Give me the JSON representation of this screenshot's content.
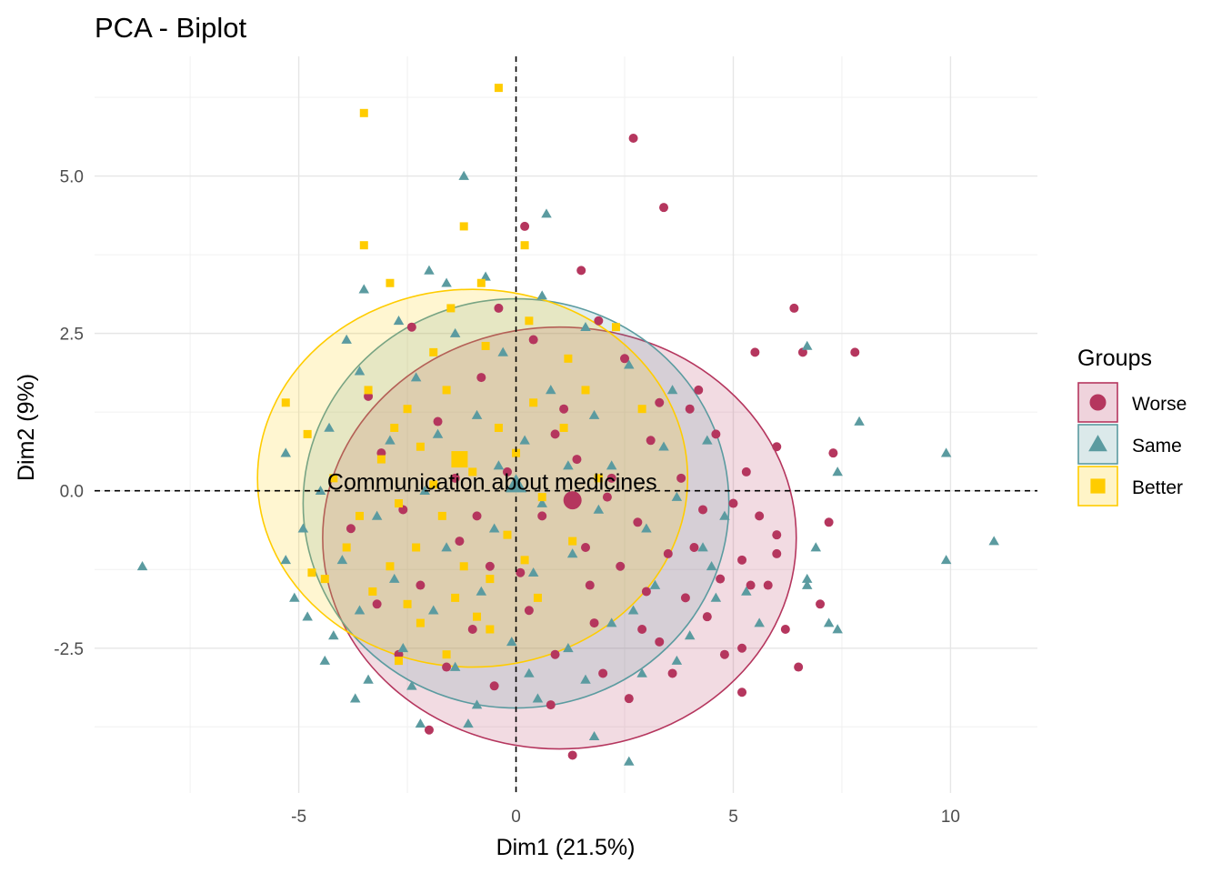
{
  "chart_data": {
    "type": "scatter",
    "title": "PCA - Biplot",
    "xlabel": "Dim1 (21.5%)",
    "ylabel": "Dim2 (9%)",
    "xlim": [
      -9.7,
      12
    ],
    "ylim": [
      -4.8,
      6.9
    ],
    "x_ticks": [
      -5,
      0,
      5,
      10
    ],
    "x_tick_labels": [
      "-5",
      "0",
      "5",
      "10"
    ],
    "y_ticks": [
      -2.5,
      0,
      2.5,
      5
    ],
    "y_tick_labels": [
      "-2.5",
      "0.0",
      "2.5",
      "5.0"
    ],
    "grid": true,
    "reference_lines": {
      "x": 0,
      "y": 0,
      "style": "dashed"
    },
    "legend": {
      "title": "Groups",
      "position": "right"
    },
    "variable_label": "Communication about medicines",
    "series": [
      {
        "name": "Worse",
        "color": "#B5365E",
        "marker": "circle",
        "centroid": [
          1.3,
          -0.15
        ],
        "ellipse": {
          "cx": 1.0,
          "cy": -0.75,
          "rx": 5.45,
          "ry": 3.35
        },
        "points": [
          [
            2.7,
            5.6
          ],
          [
            3.4,
            4.5
          ],
          [
            6.4,
            2.9
          ],
          [
            7.8,
            2.2
          ],
          [
            6.6,
            2.2
          ],
          [
            5.5,
            2.2
          ],
          [
            4.2,
            1.6
          ],
          [
            7.3,
            0.6
          ],
          [
            6.0,
            0.7
          ],
          [
            5.3,
            0.3
          ],
          [
            5.6,
            -0.4
          ],
          [
            6.0,
            -0.7
          ],
          [
            7.2,
            -0.5
          ],
          [
            6.0,
            -1.0
          ],
          [
            5.2,
            -1.1
          ],
          [
            4.7,
            -1.4
          ],
          [
            5.4,
            -1.5
          ],
          [
            5.8,
            -1.5
          ],
          [
            7.0,
            -1.8
          ],
          [
            6.2,
            -2.2
          ],
          [
            5.2,
            -2.5
          ],
          [
            6.5,
            -2.8
          ],
          [
            5.2,
            -3.2
          ],
          [
            4.8,
            -2.6
          ],
          [
            3.6,
            -2.9
          ],
          [
            3.3,
            -2.4
          ],
          [
            2.6,
            -3.3
          ],
          [
            1.3,
            -4.2
          ],
          [
            -2.0,
            -3.8
          ],
          [
            0.2,
            4.2
          ],
          [
            1.5,
            3.5
          ],
          [
            4.3,
            -0.3
          ],
          [
            3.5,
            -1.0
          ],
          [
            2.8,
            -0.5
          ],
          [
            2.2,
            0.2
          ],
          [
            3.1,
            0.8
          ],
          [
            4.6,
            0.9
          ],
          [
            3.9,
            -1.7
          ],
          [
            3.0,
            -1.6
          ],
          [
            2.4,
            -1.2
          ],
          [
            1.8,
            -2.1
          ],
          [
            0.9,
            -2.6
          ],
          [
            0.3,
            -1.9
          ],
          [
            -0.6,
            -1.2
          ],
          [
            -1.3,
            -0.8
          ],
          [
            -2.2,
            -1.5
          ],
          [
            -2.6,
            -0.3
          ],
          [
            -3.1,
            0.6
          ],
          [
            -1.8,
            1.1
          ],
          [
            -0.8,
            1.8
          ],
          [
            0.4,
            2.4
          ],
          [
            1.1,
            1.3
          ],
          [
            1.6,
            -0.9
          ],
          [
            0.6,
            -0.4
          ],
          [
            -0.2,
            0.3
          ],
          [
            -1.0,
            -2.2
          ],
          [
            -1.6,
            -2.8
          ],
          [
            -0.5,
            -3.1
          ],
          [
            0.8,
            -3.4
          ],
          [
            2.0,
            -2.9
          ],
          [
            3.8,
            0.2
          ],
          [
            4.0,
            1.3
          ],
          [
            2.5,
            2.1
          ],
          [
            1.9,
            2.7
          ],
          [
            -0.4,
            2.9
          ],
          [
            -2.4,
            2.6
          ],
          [
            -3.4,
            1.5
          ],
          [
            -3.8,
            -0.6
          ],
          [
            -3.2,
            -1.8
          ],
          [
            -2.7,
            -2.6
          ],
          [
            1.4,
            0.5
          ],
          [
            0.9,
            0.9
          ],
          [
            2.9,
            -2.2
          ],
          [
            4.4,
            -2.0
          ],
          [
            5.0,
            -0.2
          ],
          [
            3.3,
            1.4
          ],
          [
            2.1,
            -0.1
          ],
          [
            0.1,
            -1.3
          ],
          [
            -1.4,
            0.2
          ],
          [
            -0.9,
            -0.4
          ],
          [
            1.7,
            -1.5
          ],
          [
            4.1,
            -0.9
          ]
        ]
      },
      {
        "name": "Same",
        "color": "#5B9BA0",
        "marker": "triangle",
        "centroid": [
          0.0,
          0.1
        ],
        "ellipse": {
          "cx": 0.0,
          "cy": -0.2,
          "rx": 4.9,
          "ry": 3.25
        },
        "points": [
          [
            -1.2,
            5.0
          ],
          [
            0.7,
            4.4
          ],
          [
            -3.5,
            3.2
          ],
          [
            6.7,
            2.3
          ],
          [
            7.9,
            1.1
          ],
          [
            9.9,
            0.6
          ],
          [
            11.0,
            -0.8
          ],
          [
            9.9,
            -1.1
          ],
          [
            7.4,
            0.3
          ],
          [
            7.2,
            -2.1
          ],
          [
            7.4,
            -2.2
          ],
          [
            6.9,
            -0.9
          ],
          [
            6.7,
            -1.4
          ],
          [
            6.7,
            -1.5
          ],
          [
            5.6,
            -2.1
          ],
          [
            5.3,
            -1.6
          ],
          [
            4.5,
            -1.2
          ],
          [
            4.8,
            -0.4
          ],
          [
            4.3,
            -0.9
          ],
          [
            3.7,
            -2.7
          ],
          [
            2.6,
            -4.3
          ],
          [
            1.8,
            -3.9
          ],
          [
            -1.1,
            -3.7
          ],
          [
            -2.2,
            -3.7
          ],
          [
            -3.7,
            -3.3
          ],
          [
            -4.4,
            -2.7
          ],
          [
            -4.8,
            -2.0
          ],
          [
            -5.1,
            -1.7
          ],
          [
            -5.3,
            -1.1
          ],
          [
            -5.3,
            0.6
          ],
          [
            -8.6,
            -1.2
          ],
          [
            -4.2,
            -2.3
          ],
          [
            -3.4,
            -3.0
          ],
          [
            -2.4,
            -3.1
          ],
          [
            -0.9,
            -3.4
          ],
          [
            0.5,
            -3.3
          ],
          [
            1.6,
            -3.0
          ],
          [
            2.9,
            -2.9
          ],
          [
            4.0,
            -2.3
          ],
          [
            4.6,
            -1.7
          ],
          [
            3.7,
            -0.1
          ],
          [
            4.4,
            0.8
          ],
          [
            3.6,
            1.6
          ],
          [
            2.6,
            2.0
          ],
          [
            1.6,
            2.6
          ],
          [
            0.6,
            3.1
          ],
          [
            -0.7,
            3.4
          ],
          [
            -1.6,
            3.3
          ],
          [
            -2.7,
            2.7
          ],
          [
            -3.6,
            1.9
          ],
          [
            -4.3,
            1.0
          ],
          [
            -4.5,
            0.0
          ],
          [
            -4.0,
            -1.1
          ],
          [
            -3.6,
            -1.9
          ],
          [
            -2.6,
            -2.5
          ],
          [
            -1.4,
            -2.8
          ],
          [
            -0.1,
            -2.4
          ],
          [
            1.2,
            -2.5
          ],
          [
            2.2,
            -2.1
          ],
          [
            3.2,
            -1.5
          ],
          [
            3.0,
            -0.6
          ],
          [
            2.2,
            0.4
          ],
          [
            1.8,
            1.2
          ],
          [
            0.8,
            1.6
          ],
          [
            -0.3,
            2.2
          ],
          [
            -1.4,
            2.5
          ],
          [
            -2.3,
            1.8
          ],
          [
            -2.9,
            0.8
          ],
          [
            -3.2,
            -0.4
          ],
          [
            -2.8,
            -1.4
          ],
          [
            -1.9,
            -1.9
          ],
          [
            -0.8,
            -1.6
          ],
          [
            0.4,
            -1.3
          ],
          [
            1.3,
            -1.0
          ],
          [
            1.9,
            -0.3
          ],
          [
            1.2,
            0.4
          ],
          [
            0.2,
            0.8
          ],
          [
            -0.9,
            1.2
          ],
          [
            -1.8,
            0.9
          ],
          [
            -2.1,
            0.0
          ],
          [
            -1.6,
            -0.9
          ],
          [
            -0.5,
            -0.6
          ],
          [
            0.6,
            -0.2
          ],
          [
            -0.4,
            0.4
          ],
          [
            2.7,
            -1.9
          ],
          [
            3.4,
            0.7
          ],
          [
            -3.9,
            2.4
          ],
          [
            -4.9,
            -0.6
          ],
          [
            0.3,
            -2.9
          ],
          [
            -2.0,
            3.5
          ]
        ]
      },
      {
        "name": "Better",
        "color": "#FFCC00",
        "marker": "square",
        "centroid": [
          -1.3,
          0.5
        ],
        "ellipse": {
          "cx": -1.0,
          "cy": 0.2,
          "rx": 4.95,
          "ry": 3.0
        },
        "points": [
          [
            -0.4,
            6.4
          ],
          [
            -3.5,
            6.0
          ],
          [
            -3.5,
            3.9
          ],
          [
            -5.3,
            1.4
          ],
          [
            2.3,
            2.6
          ],
          [
            -1.2,
            4.2
          ],
          [
            -2.9,
            3.3
          ],
          [
            -4.8,
            0.9
          ],
          [
            -4.7,
            -1.3
          ],
          [
            -4.4,
            -1.4
          ],
          [
            -3.3,
            -1.6
          ],
          [
            -2.7,
            -2.7
          ],
          [
            -1.4,
            -1.7
          ],
          [
            -0.9,
            -2.0
          ],
          [
            0.2,
            -1.1
          ],
          [
            0.6,
            -0.1
          ],
          [
            1.1,
            1.0
          ],
          [
            1.6,
            1.6
          ],
          [
            0.2,
            3.9
          ],
          [
            -0.8,
            3.3
          ],
          [
            -1.9,
            2.2
          ],
          [
            -2.5,
            1.3
          ],
          [
            -3.1,
            0.5
          ],
          [
            -3.6,
            -0.4
          ],
          [
            -2.9,
            -1.2
          ],
          [
            -2.2,
            -2.1
          ],
          [
            -1.6,
            -2.6
          ],
          [
            -0.6,
            -2.2
          ],
          [
            0.5,
            -1.7
          ],
          [
            1.3,
            -0.8
          ],
          [
            1.9,
            0.2
          ],
          [
            1.2,
            2.1
          ],
          [
            0.3,
            2.7
          ],
          [
            -0.7,
            2.3
          ],
          [
            -1.6,
            1.6
          ],
          [
            -2.2,
            0.7
          ],
          [
            -2.7,
            -0.2
          ],
          [
            -2.3,
            -0.9
          ],
          [
            -1.7,
            -0.4
          ],
          [
            -1.0,
            0.3
          ],
          [
            -0.4,
            1.0
          ],
          [
            0.4,
            1.4
          ],
          [
            -0.2,
            -0.7
          ],
          [
            -1.2,
            -1.2
          ],
          [
            -1.9,
            0.1
          ],
          [
            -2.8,
            1.0
          ],
          [
            -3.4,
            1.6
          ],
          [
            -3.9,
            -0.9
          ],
          [
            -1.5,
            2.9
          ],
          [
            0.0,
            0.6
          ],
          [
            -0.6,
            -1.4
          ],
          [
            -2.5,
            -1.8
          ],
          [
            2.9,
            1.3
          ],
          [
            -4.2,
            0.2
          ]
        ]
      }
    ]
  }
}
